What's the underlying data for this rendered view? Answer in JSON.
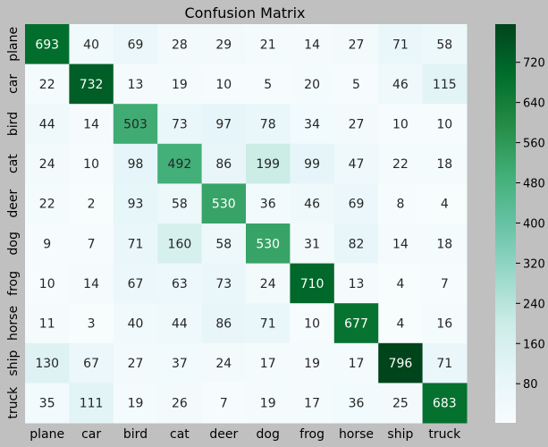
{
  "chart_data": {
    "type": "heatmap",
    "title": "Confusion Matrix",
    "xlabel": "",
    "ylabel": "",
    "x_categories": [
      "plane",
      "car",
      "bird",
      "cat",
      "deer",
      "dog",
      "frog",
      "horse",
      "ship",
      "truck"
    ],
    "y_categories": [
      "plane",
      "car",
      "bird",
      "cat",
      "deer",
      "dog",
      "frog",
      "horse",
      "ship",
      "truck"
    ],
    "values": [
      [
        693,
        40,
        69,
        28,
        29,
        21,
        14,
        27,
        71,
        58
      ],
      [
        22,
        732,
        13,
        19,
        10,
        5,
        20,
        5,
        46,
        115
      ],
      [
        44,
        14,
        503,
        73,
        97,
        78,
        34,
        27,
        10,
        10
      ],
      [
        24,
        10,
        98,
        492,
        86,
        199,
        99,
        47,
        22,
        18
      ],
      [
        22,
        2,
        93,
        58,
        530,
        36,
        46,
        69,
        8,
        4
      ],
      [
        9,
        7,
        71,
        160,
        58,
        530,
        31,
        82,
        14,
        18
      ],
      [
        10,
        14,
        67,
        63,
        73,
        24,
        710,
        13,
        4,
        7
      ],
      [
        11,
        3,
        40,
        44,
        86,
        71,
        10,
        677,
        4,
        16
      ],
      [
        130,
        67,
        27,
        37,
        24,
        17,
        19,
        17,
        796,
        71
      ],
      [
        35,
        111,
        19,
        26,
        7,
        19,
        17,
        36,
        25,
        683
      ]
    ],
    "colormap": "BuGn",
    "colorbar": {
      "range": [
        2,
        796
      ],
      "ticks": [
        80,
        160,
        240,
        320,
        400,
        480,
        560,
        640,
        720
      ]
    },
    "grid": false
  }
}
